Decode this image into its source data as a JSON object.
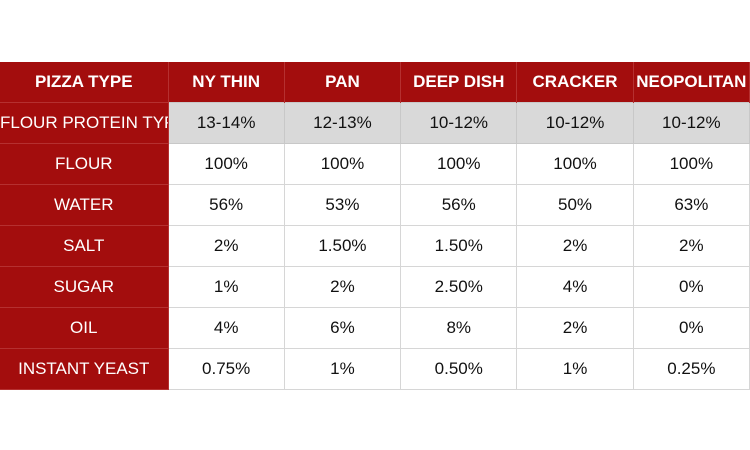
{
  "table": {
    "header": [
      "PIZZA TYPE",
      "NY THIN",
      "PAN",
      "DEEP DISH",
      "CRACKER",
      "NEOPOLITAN"
    ],
    "rows": [
      [
        "FLOUR PROTEIN TYPE",
        "13-14%",
        "12-13%",
        "10-12%",
        "10-12%",
        "10-12%"
      ],
      [
        "FLOUR",
        "100%",
        "100%",
        "100%",
        "100%",
        "100%"
      ],
      [
        "WATER",
        "56%",
        "53%",
        "56%",
        "50%",
        "63%"
      ],
      [
        "SALT",
        "2%",
        "1.50%",
        "1.50%",
        "2%",
        "2%"
      ],
      [
        "SUGAR",
        "1%",
        "2%",
        "2.50%",
        "4%",
        "0%"
      ],
      [
        "OIL",
        "4%",
        "6%",
        "8%",
        "2%",
        "0%"
      ],
      [
        "INSTANT YEAST",
        "0.75%",
        "1%",
        "0.50%",
        "1%",
        "0.25%"
      ]
    ]
  }
}
